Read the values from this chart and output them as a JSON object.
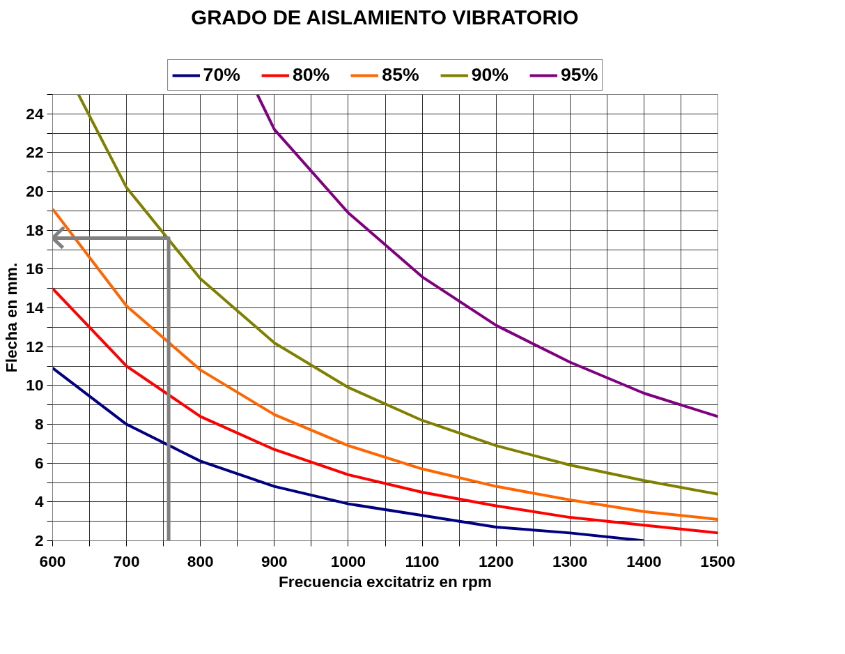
{
  "chart_data": {
    "type": "line",
    "title": "GRADO DE AISLAMIENTO VIBRATORIO",
    "xlabel": "Frecuencia excitatriz en rpm",
    "ylabel": "Flecha en mm.",
    "x": [
      600,
      700,
      800,
      900,
      1000,
      1100,
      1200,
      1300,
      1400,
      1500
    ],
    "series": [
      {
        "name": "70%",
        "color": "#000080",
        "x": [
          600,
          700,
          800,
          900,
          1000,
          1100,
          1200,
          1300,
          1400
        ],
        "values": [
          10.9,
          8.0,
          6.1,
          4.8,
          3.9,
          3.3,
          2.7,
          2.4,
          2.0
        ]
      },
      {
        "name": "80%",
        "color": "#ff0000",
        "values": [
          15.0,
          11.0,
          8.4,
          6.7,
          5.4,
          4.5,
          3.8,
          3.2,
          2.8,
          2.4
        ]
      },
      {
        "name": "85%",
        "color": "#ff6600",
        "values": [
          19.1,
          14.1,
          10.8,
          8.5,
          6.9,
          5.7,
          4.8,
          4.1,
          3.5,
          3.1
        ]
      },
      {
        "name": "90%",
        "color": "#808000",
        "x": [
          635,
          700,
          800,
          900,
          1000,
          1100,
          1200,
          1300,
          1400,
          1500
        ],
        "values": [
          25,
          20.2,
          15.5,
          12.2,
          9.9,
          8.2,
          6.9,
          5.9,
          5.1,
          4.4
        ]
      },
      {
        "name": "95%",
        "color": "#800080",
        "x": [
          877,
          900,
          1000,
          1100,
          1200,
          1300,
          1400,
          1500
        ],
        "values": [
          25,
          23.2,
          18.9,
          15.6,
          13.1,
          11.2,
          9.6,
          8.4
        ]
      },
      {
        "color": "#808080",
        "x": [
          757,
          757,
          600,
          614,
          600,
          614
        ],
        "values": [
          2,
          17.6,
          17.6,
          18.1,
          17.6,
          17.1
        ]
      }
    ],
    "xlim": [
      600,
      1500
    ],
    "ylim": [
      2,
      25
    ],
    "xticks": [
      600,
      {
        "value": 650,
        "label": null
      },
      700,
      {
        "value": 750,
        "label": null
      },
      800,
      {
        "value": 850,
        "label": null
      },
      900,
      {
        "value": 950,
        "label": null
      },
      1000,
      {
        "value": 1050,
        "label": null
      },
      1100,
      {
        "value": 1150,
        "label": null
      },
      1200,
      {
        "value": 1250,
        "label": null
      },
      1300,
      {
        "value": 1350,
        "label": null
      },
      1400,
      {
        "value": 1450,
        "label": null
      },
      1500
    ],
    "yticks": [
      2,
      {
        "value": 3,
        "label": null
      },
      4,
      {
        "value": 5,
        "label": null
      },
      6,
      {
        "value": 7,
        "label": null
      },
      8,
      {
        "value": 9,
        "label": null
      },
      10,
      {
        "value": 11,
        "label": null
      },
      12,
      {
        "value": 13,
        "label": null
      },
      14,
      {
        "value": 15,
        "label": null
      },
      16,
      {
        "value": 17,
        "label": null
      },
      18,
      {
        "value": 19,
        "label": null
      },
      20,
      {
        "value": 21,
        "label": null
      },
      22,
      {
        "value": 23,
        "label": null
      },
      24,
      {
        "value": 25,
        "label": null
      }
    ],
    "grid": true,
    "legend": "top",
    "marker": "none",
    "line_style": "solid"
  }
}
